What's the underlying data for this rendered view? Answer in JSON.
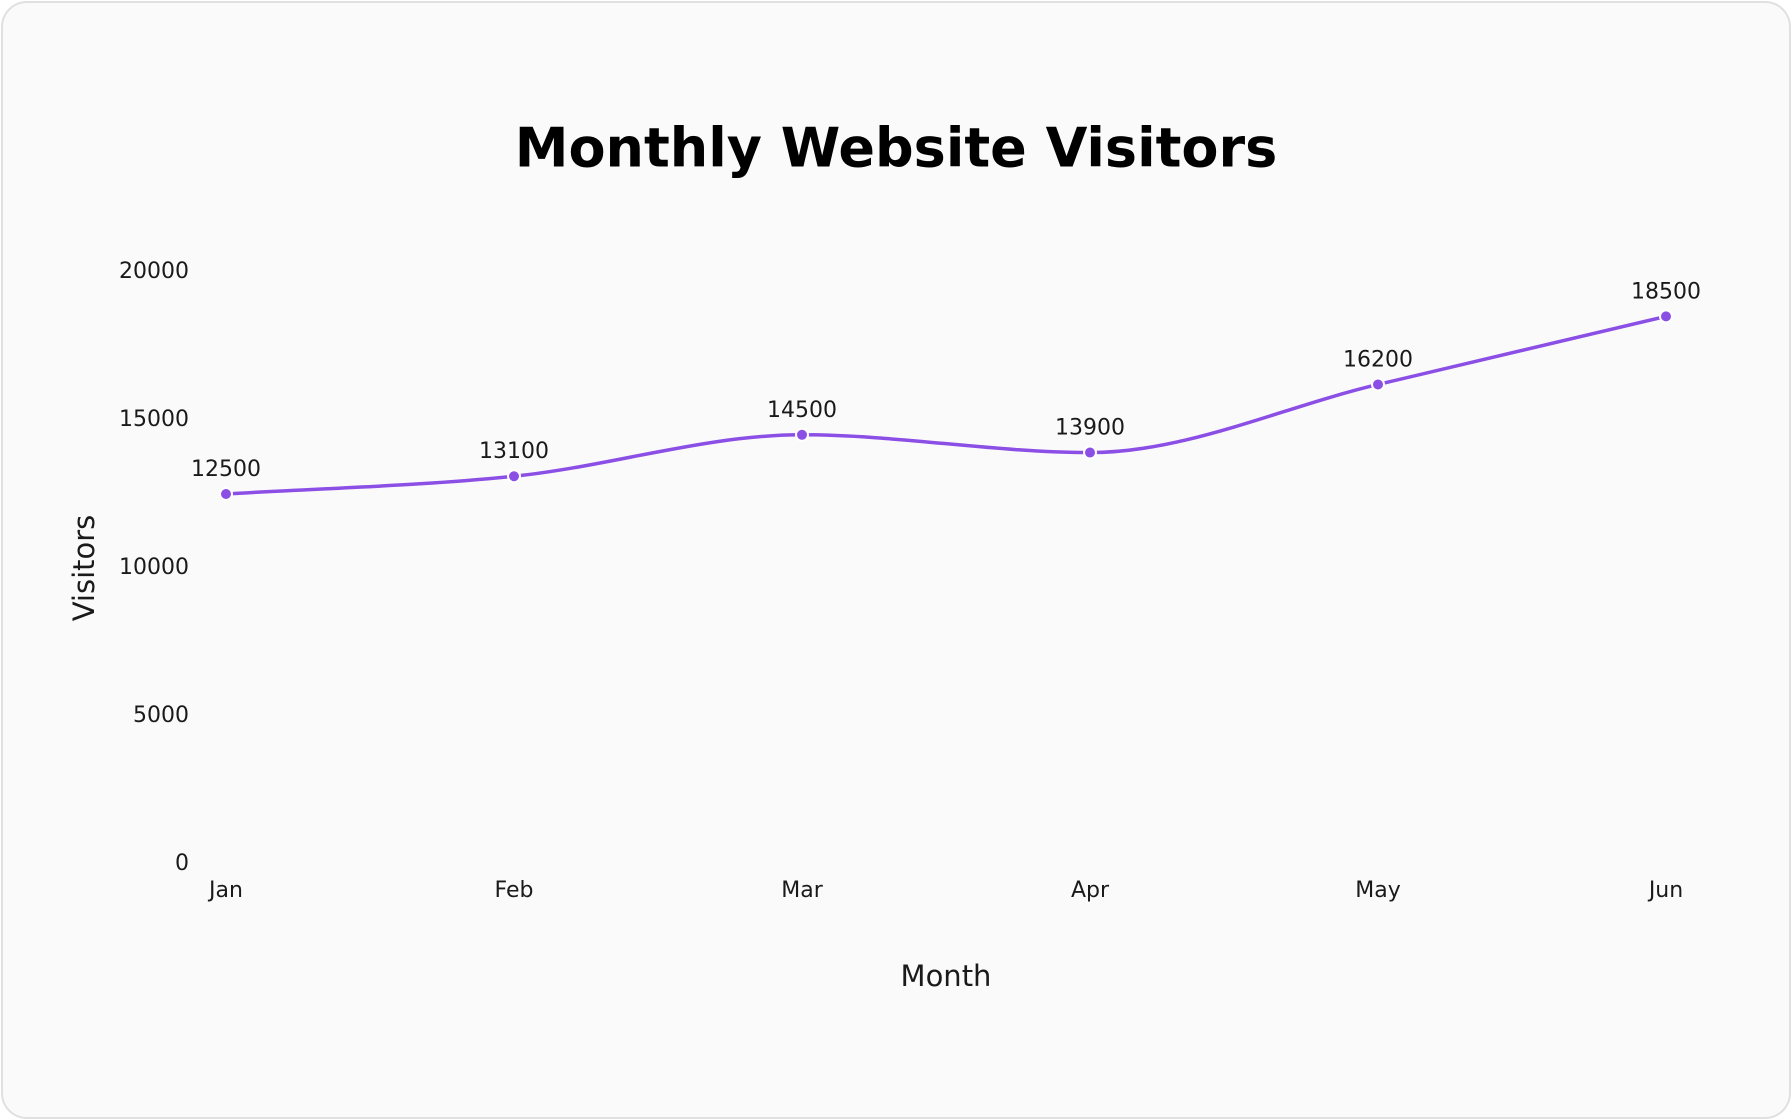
{
  "chart_data": {
    "type": "line",
    "title": "Monthly Website Visitors",
    "x_label": "Month",
    "y_label": "Visitors",
    "categories": [
      "Jan",
      "Feb",
      "Mar",
      "Apr",
      "May",
      "Jun"
    ],
    "values": [
      12500,
      13100,
      14500,
      13900,
      16200,
      18500
    ],
    "color": "#8b4fe6",
    "smooth": true,
    "ylim": [
      0,
      20000
    ],
    "yticks": [
      0,
      5000,
      10000,
      15000,
      20000
    ],
    "grid": false
  }
}
